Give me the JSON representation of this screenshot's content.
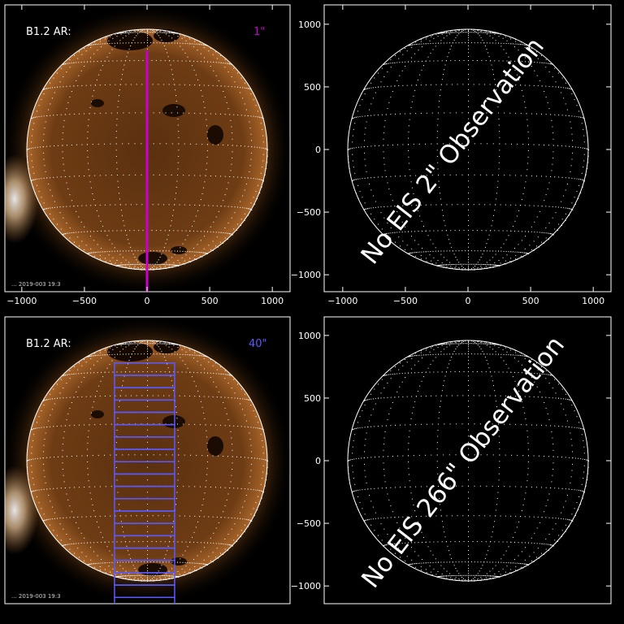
{
  "colors": {
    "background": "#000000",
    "axes": "#ffffff",
    "solar_disk": "#6a3a12",
    "corona": "#c07a3a",
    "eis_1arcsec": "#cc00cc",
    "eis_40arcsec": "#5a5aff"
  },
  "chart_data": [
    {
      "id": "top-left",
      "type": "solar-image",
      "panel_label": "B1.2 AR:",
      "slit_label": "1\"",
      "slit_label_color": "#cc00cc",
      "image_caption": "... 2019-003 19:3",
      "xlim": [
        -1150,
        1150
      ],
      "ylim": [
        -1150,
        1150
      ],
      "xticks": [
        -1000,
        -500,
        0,
        500,
        1000
      ],
      "yticks": [],
      "solar_radius": 960,
      "grid": "latitude-longitude dotted",
      "raster": {
        "type": "slit",
        "x": 0,
        "y_start": 790,
        "y_end": -1190
      }
    },
    {
      "id": "top-right",
      "type": "solar-grid",
      "xlim": [
        -1150,
        1150
      ],
      "ylim": [
        -1150,
        1150
      ],
      "xticks": [
        -1000,
        -500,
        0,
        500,
        1000
      ],
      "yticks": [
        1000,
        500,
        0,
        -500,
        -1000
      ],
      "solar_radius": 960,
      "grid": "latitude-longitude dotted",
      "annotation": "No EIS 2\" Observation"
    },
    {
      "id": "bottom-left",
      "type": "solar-image",
      "panel_label": "B1.2 AR:",
      "slit_label": "40\"",
      "slit_label_color": "#5a5aff",
      "image_caption": "... 2019-003 19:3",
      "xlim": [
        -1150,
        1150
      ],
      "ylim": [
        -1150,
        1150
      ],
      "xticks": [],
      "yticks": [],
      "solar_radius": 960,
      "grid": "latitude-longitude dotted",
      "raster": {
        "type": "boxes",
        "x_left": -260,
        "x_right": 220,
        "y_top": 780,
        "y_bottom": -1190,
        "count": 20
      }
    },
    {
      "id": "bottom-right",
      "type": "solar-grid",
      "xlim": [
        -1150,
        1150
      ],
      "ylim": [
        -1150,
        1150
      ],
      "xticks": [],
      "yticks": [
        1000,
        500,
        0,
        -500,
        -1000
      ],
      "solar_radius": 960,
      "grid": "latitude-longitude dotted",
      "annotation": "No EIS 266\" Observation"
    }
  ]
}
